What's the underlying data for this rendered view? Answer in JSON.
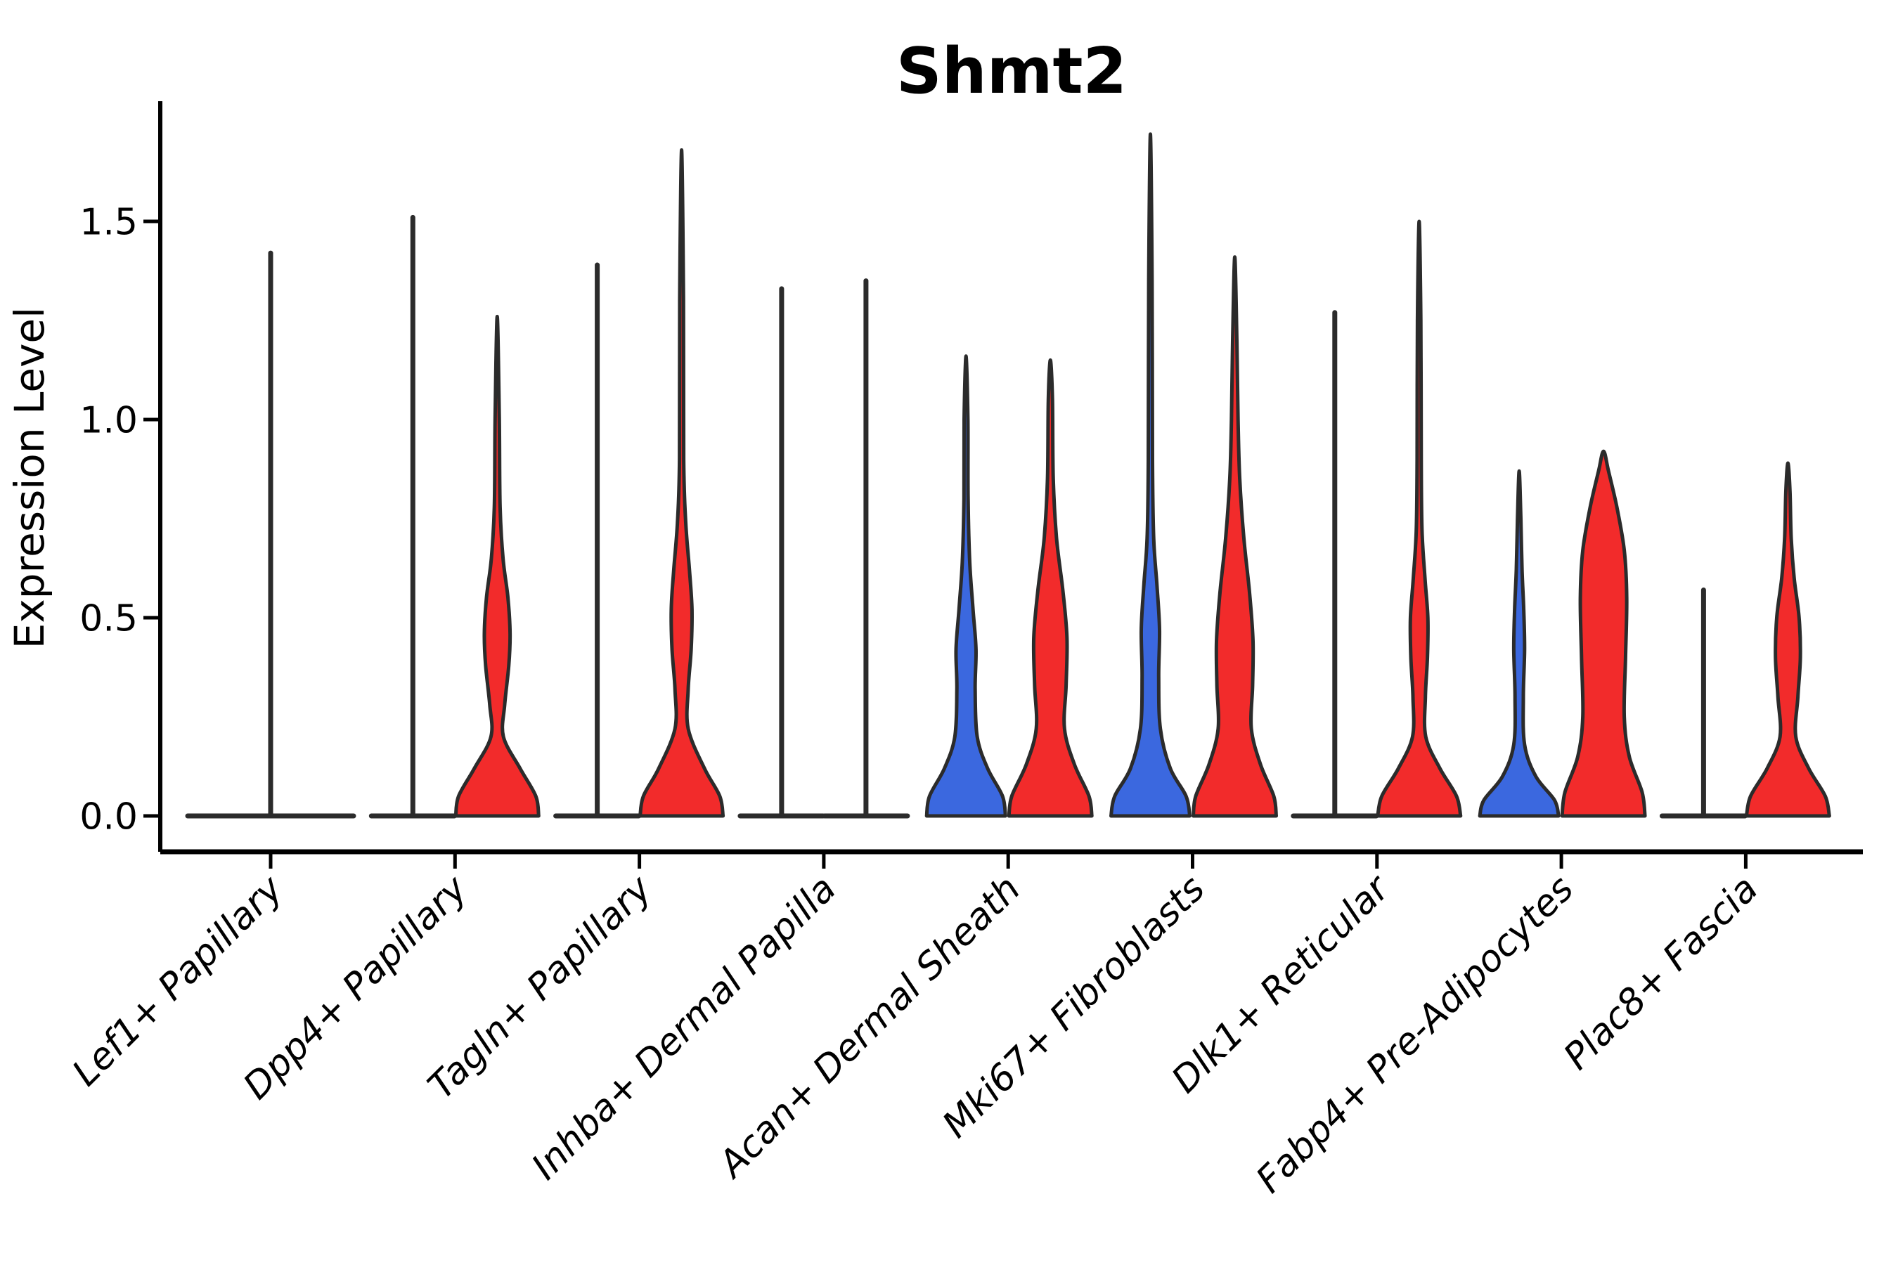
{
  "chart_data": {
    "type": "violin",
    "title": "Shmt2",
    "ylabel": "Expression Level",
    "xlabel": "",
    "yticks": [
      {
        "value": 0.0,
        "label": "0.0"
      },
      {
        "value": 0.5,
        "label": "0.5"
      },
      {
        "value": 1.0,
        "label": "1.0"
      },
      {
        "value": 1.5,
        "label": "1.5"
      }
    ],
    "ylim": [
      -0.09,
      1.8
    ],
    "grid": false,
    "legend": "none",
    "colors": {
      "blue": "#3B68DF",
      "red": "#F22B2B",
      "outline": "#2B2B2B",
      "background": "#FFFFFF"
    },
    "categories": [
      {
        "label": "Lef1+ Papillary",
        "violins": [
          {
            "split": "single",
            "color": null,
            "flat": true,
            "max": 1.42
          }
        ]
      },
      {
        "label": "Dpp4+ Papillary",
        "violins": [
          {
            "split": "left",
            "color": "blue",
            "flat": true,
            "max": 1.51
          },
          {
            "split": "right",
            "color": "red",
            "flat": false,
            "max": 1.26,
            "profile": [
              [
                0,
                1.0
              ],
              [
                0.05,
                0.93
              ],
              [
                0.12,
                0.55
              ],
              [
                0.2,
                0.15
              ],
              [
                0.28,
                0.18
              ],
              [
                0.38,
                0.28
              ],
              [
                0.46,
                0.31
              ],
              [
                0.55,
                0.26
              ],
              [
                0.65,
                0.14
              ],
              [
                0.78,
                0.07
              ],
              [
                1.0,
                0.05
              ],
              [
                1.26,
                0.0
              ]
            ]
          }
        ]
      },
      {
        "label": "Tagln+ Papillary",
        "violins": [
          {
            "split": "left",
            "color": "blue",
            "flat": true,
            "max": 1.39
          },
          {
            "split": "right",
            "color": "red",
            "flat": false,
            "max": 1.68,
            "profile": [
              [
                0,
                1.0
              ],
              [
                0.05,
                0.92
              ],
              [
                0.12,
                0.55
              ],
              [
                0.22,
                0.16
              ],
              [
                0.32,
                0.16
              ],
              [
                0.42,
                0.23
              ],
              [
                0.52,
                0.25
              ],
              [
                0.62,
                0.19
              ],
              [
                0.74,
                0.1
              ],
              [
                0.9,
                0.05
              ],
              [
                1.3,
                0.045
              ],
              [
                1.68,
                0.0
              ]
            ]
          }
        ]
      },
      {
        "label": "Inhba+ Dermal Papilla",
        "violins": [
          {
            "split": "left",
            "color": "blue",
            "flat": true,
            "max": 1.33
          },
          {
            "split": "right",
            "color": "red",
            "flat": true,
            "max": 1.35
          }
        ]
      },
      {
        "label": "Acan+ Dermal Sheath",
        "violins": [
          {
            "split": "left",
            "color": "blue",
            "flat": false,
            "max": 1.16,
            "profile": [
              [
                0,
                0.95
              ],
              [
                0.05,
                0.88
              ],
              [
                0.12,
                0.52
              ],
              [
                0.2,
                0.27
              ],
              [
                0.32,
                0.22
              ],
              [
                0.42,
                0.24
              ],
              [
                0.52,
                0.17
              ],
              [
                0.64,
                0.09
              ],
              [
                0.8,
                0.05
              ],
              [
                1.0,
                0.045
              ],
              [
                1.16,
                0.0
              ]
            ]
          },
          {
            "split": "right",
            "color": "red",
            "flat": false,
            "max": 1.15,
            "profile": [
              [
                0,
                1.0
              ],
              [
                0.05,
                0.93
              ],
              [
                0.13,
                0.58
              ],
              [
                0.22,
                0.34
              ],
              [
                0.33,
                0.38
              ],
              [
                0.45,
                0.4
              ],
              [
                0.57,
                0.3
              ],
              [
                0.7,
                0.15
              ],
              [
                0.85,
                0.07
              ],
              [
                1.05,
                0.05
              ],
              [
                1.15,
                0.0
              ]
            ]
          }
        ]
      },
      {
        "label": "Mki67+ Fibroblasts",
        "violins": [
          {
            "split": "left",
            "color": "blue",
            "flat": false,
            "max": 1.72,
            "profile": [
              [
                0,
                0.95
              ],
              [
                0.05,
                0.86
              ],
              [
                0.12,
                0.48
              ],
              [
                0.22,
                0.24
              ],
              [
                0.35,
                0.2
              ],
              [
                0.47,
                0.22
              ],
              [
                0.58,
                0.16
              ],
              [
                0.7,
                0.08
              ],
              [
                0.9,
                0.05
              ],
              [
                1.35,
                0.04
              ],
              [
                1.72,
                0.0
              ]
            ]
          },
          {
            "split": "right",
            "color": "red",
            "flat": false,
            "max": 1.41,
            "profile": [
              [
                0,
                1.0
              ],
              [
                0.05,
                0.94
              ],
              [
                0.13,
                0.62
              ],
              [
                0.22,
                0.4
              ],
              [
                0.33,
                0.43
              ],
              [
                0.44,
                0.44
              ],
              [
                0.56,
                0.36
              ],
              [
                0.7,
                0.22
              ],
              [
                0.85,
                0.12
              ],
              [
                1.0,
                0.08
              ],
              [
                1.2,
                0.05
              ],
              [
                1.41,
                0.0
              ]
            ]
          }
        ]
      },
      {
        "label": "Dlk1+ Reticular",
        "violins": [
          {
            "split": "left",
            "color": "blue",
            "flat": true,
            "max": 1.27
          },
          {
            "split": "right",
            "color": "red",
            "flat": false,
            "max": 1.5,
            "profile": [
              [
                0,
                1.0
              ],
              [
                0.05,
                0.9
              ],
              [
                0.12,
                0.5
              ],
              [
                0.2,
                0.16
              ],
              [
                0.3,
                0.15
              ],
              [
                0.4,
                0.2
              ],
              [
                0.5,
                0.21
              ],
              [
                0.6,
                0.14
              ],
              [
                0.72,
                0.07
              ],
              [
                0.9,
                0.05
              ],
              [
                1.25,
                0.04
              ],
              [
                1.5,
                0.0
              ]
            ]
          }
        ]
      },
      {
        "label": "Fabp4+ Pre-Adipocytes",
        "violins": [
          {
            "split": "left",
            "color": "blue",
            "flat": false,
            "max": 0.87,
            "profile": [
              [
                0,
                0.95
              ],
              [
                0.04,
                0.85
              ],
              [
                0.1,
                0.4
              ],
              [
                0.18,
                0.13
              ],
              [
                0.3,
                0.1
              ],
              [
                0.42,
                0.13
              ],
              [
                0.52,
                0.11
              ],
              [
                0.62,
                0.07
              ],
              [
                0.75,
                0.04
              ],
              [
                0.87,
                0.0
              ]
            ]
          },
          {
            "split": "right",
            "color": "red",
            "flat": false,
            "max": 0.92,
            "profile": [
              [
                0,
                1.0
              ],
              [
                0.06,
                0.93
              ],
              [
                0.15,
                0.62
              ],
              [
                0.25,
                0.5
              ],
              [
                0.4,
                0.53
              ],
              [
                0.55,
                0.56
              ],
              [
                0.67,
                0.5
              ],
              [
                0.78,
                0.32
              ],
              [
                0.87,
                0.12
              ],
              [
                0.92,
                0.0
              ]
            ]
          }
        ]
      },
      {
        "label": "Plac8+ Fascia",
        "violins": [
          {
            "split": "left",
            "color": "blue",
            "flat": true,
            "max": 0.57
          },
          {
            "split": "right",
            "color": "red",
            "flat": false,
            "max": 0.89,
            "profile": [
              [
                0,
                1.0
              ],
              [
                0.05,
                0.9
              ],
              [
                0.12,
                0.5
              ],
              [
                0.2,
                0.19
              ],
              [
                0.3,
                0.24
              ],
              [
                0.4,
                0.3
              ],
              [
                0.5,
                0.27
              ],
              [
                0.6,
                0.15
              ],
              [
                0.7,
                0.08
              ],
              [
                0.82,
                0.05
              ],
              [
                0.89,
                0.0
              ]
            ]
          }
        ]
      }
    ]
  }
}
